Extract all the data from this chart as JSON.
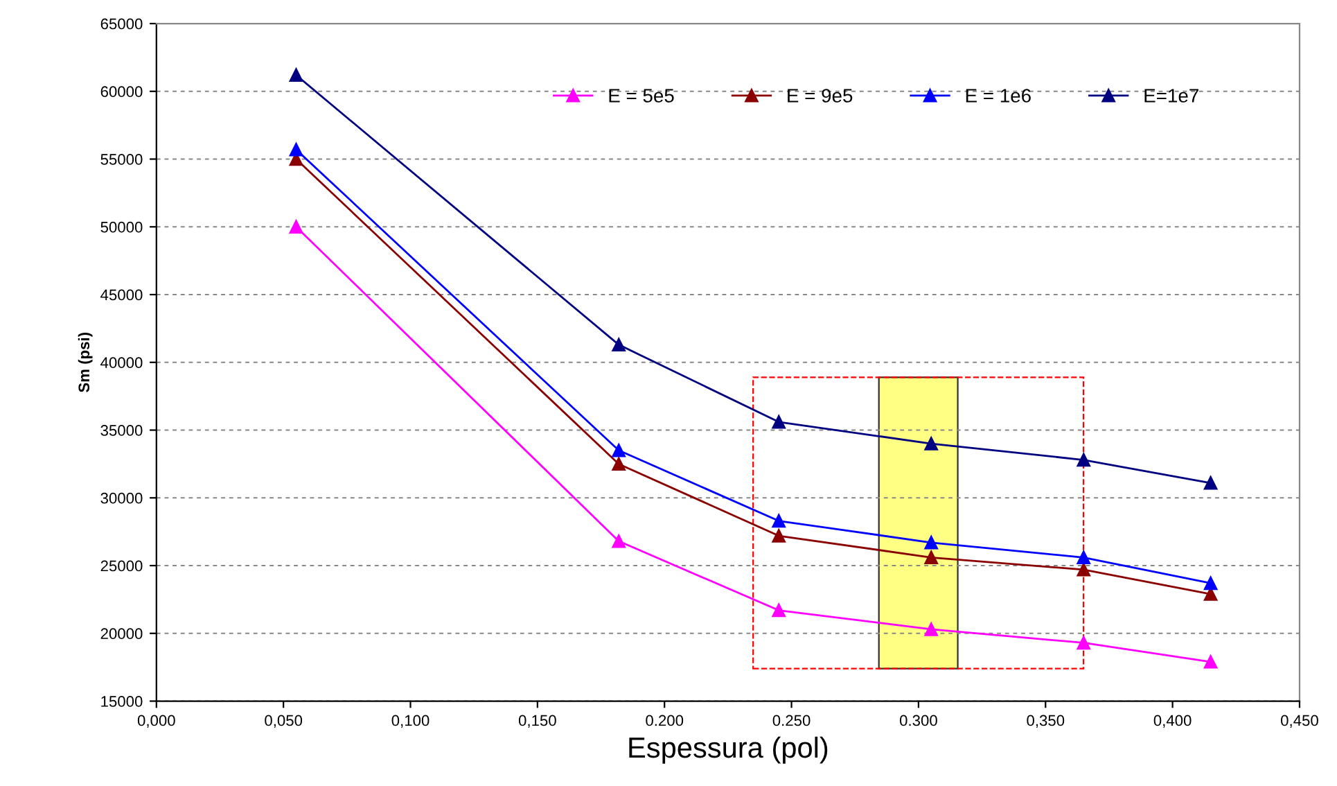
{
  "chart_data": {
    "type": "line",
    "xlabel": "Espessura (pol)",
    "ylabel": "Sm (psi)",
    "x": [
      0.055,
      0.182,
      0.245,
      0.305,
      0.365,
      0.415
    ],
    "series": [
      {
        "name": "E = 5e5",
        "color": "#ff00ff",
        "values": [
          50000,
          26800,
          21700,
          20300,
          19300,
          17900
        ]
      },
      {
        "name": "E = 9e5",
        "color": "#8b0000",
        "values": [
          55000,
          32500,
          27200,
          25600,
          24700,
          22900
        ]
      },
      {
        "name": "E = 1e6",
        "color": "#0000ff",
        "values": [
          55700,
          33500,
          28300,
          26700,
          25600,
          23700
        ]
      },
      {
        "name": "E=1e7",
        "color": "#000080",
        "values": [
          61200,
          41300,
          35600,
          34000,
          32800,
          31100
        ]
      }
    ],
    "xlim": [
      0,
      0.45
    ],
    "ylim": [
      15000,
      65000
    ],
    "xticks": [
      {
        "value": 0,
        "label": "0,000"
      },
      {
        "value": 0.05,
        "label": "0,050"
      },
      {
        "value": 0.1,
        "label": "0,100"
      },
      {
        "value": 0.15,
        "label": "0,150"
      },
      {
        "value": 0.2,
        "label": "0.200"
      },
      {
        "value": 0.25,
        "label": "0.250"
      },
      {
        "value": 0.3,
        "label": "0.300"
      },
      {
        "value": 0.35,
        "label": "0,350"
      },
      {
        "value": 0.4,
        "label": "0,400"
      },
      {
        "value": 0.45,
        "label": "0,450"
      }
    ],
    "yticks": [
      15000,
      20000,
      25000,
      30000,
      35000,
      40000,
      45000,
      50000,
      55000,
      60000,
      65000
    ],
    "grid": "y",
    "legend": "top",
    "marker": "triangle",
    "line_style": "solid"
  }
}
